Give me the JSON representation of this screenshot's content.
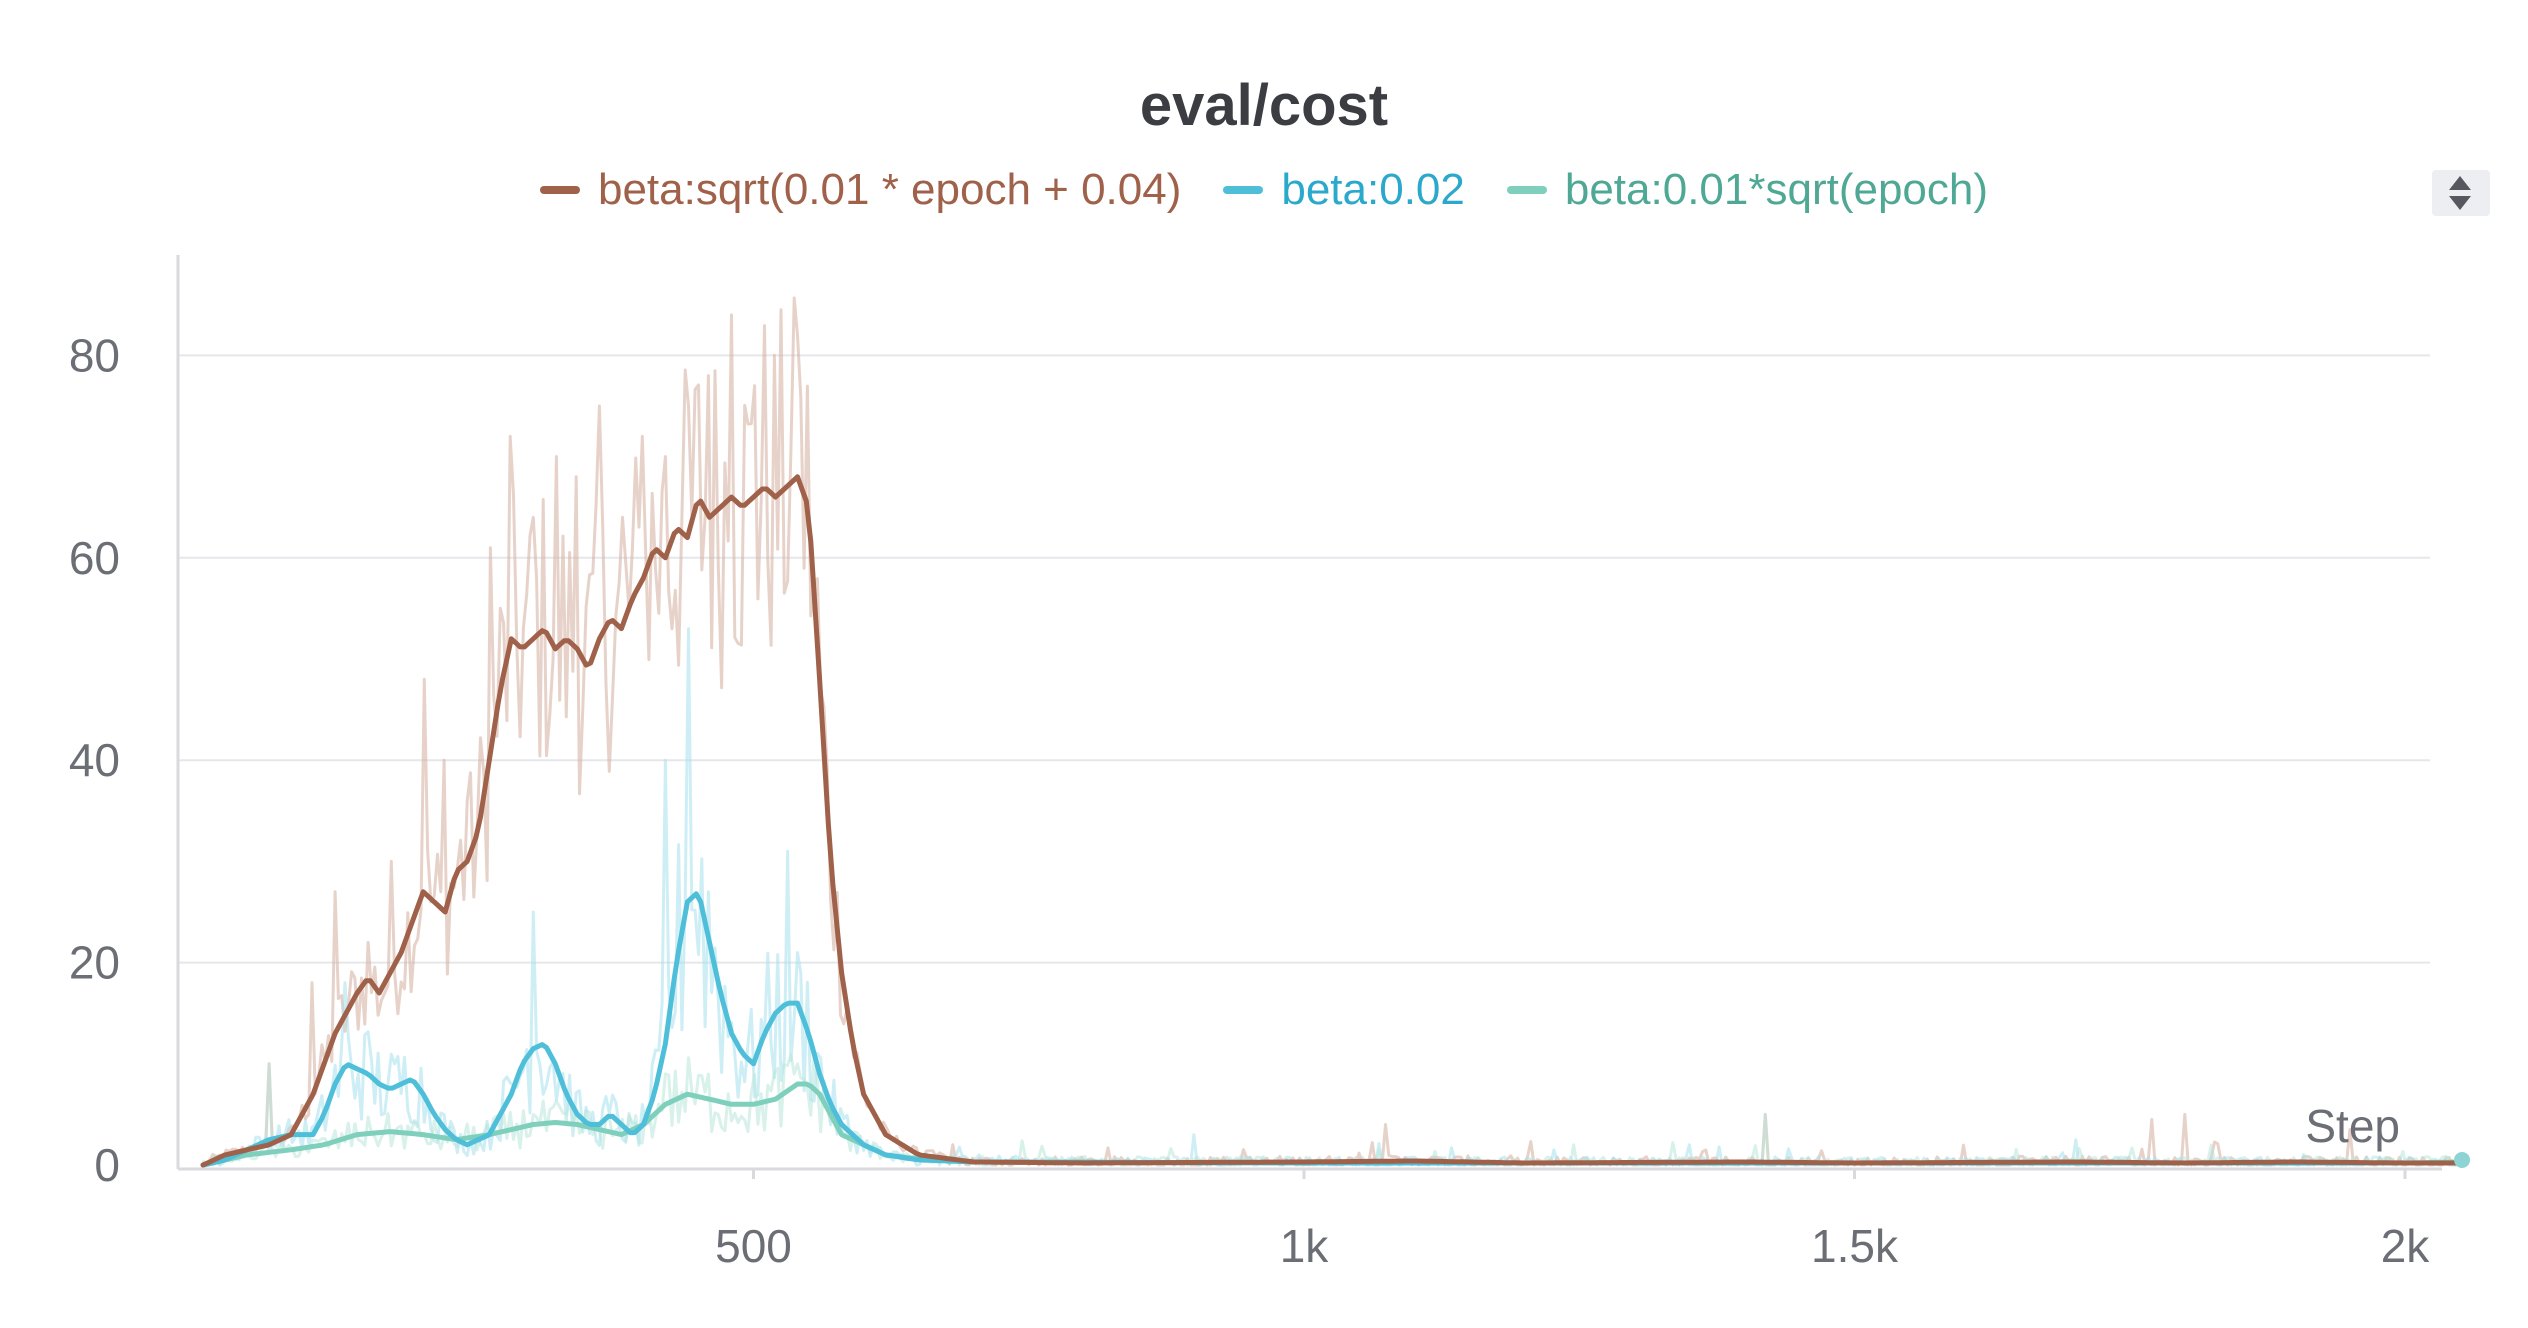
{
  "chart_data": {
    "type": "line",
    "title": "eval/cost",
    "xlabel": "Step",
    "ylabel": "",
    "xlim": [
      0,
      2050
    ],
    "ylim": [
      0,
      90
    ],
    "x_ticks": [
      500,
      1000,
      1500,
      2000
    ],
    "x_tick_labels": [
      "500",
      "1k",
      "1.5k",
      "2k"
    ],
    "y_ticks": [
      0,
      20,
      40,
      60,
      80
    ],
    "y_tick_labels": [
      "0",
      "20",
      "40",
      "60",
      "80"
    ],
    "grid": true,
    "legend_position": "top-center",
    "series": [
      {
        "name": "beta:sqrt(0.01 * epoch + 0.04)",
        "color": "#a0614a",
        "raw_color": "#d4ad9e",
        "smoothed": [
          [
            0,
            0
          ],
          [
            20,
            1
          ],
          [
            40,
            1.5
          ],
          [
            60,
            2
          ],
          [
            80,
            3
          ],
          [
            100,
            7
          ],
          [
            120,
            13
          ],
          [
            140,
            17
          ],
          [
            150,
            18.5
          ],
          [
            160,
            17
          ],
          [
            170,
            19
          ],
          [
            180,
            21
          ],
          [
            190,
            24
          ],
          [
            200,
            27
          ],
          [
            210,
            26
          ],
          [
            220,
            25
          ],
          [
            230,
            29
          ],
          [
            240,
            30
          ],
          [
            250,
            33
          ],
          [
            260,
            40
          ],
          [
            270,
            47
          ],
          [
            280,
            52
          ],
          [
            290,
            51
          ],
          [
            300,
            52
          ],
          [
            310,
            53
          ],
          [
            320,
            51
          ],
          [
            330,
            52
          ],
          [
            340,
            51
          ],
          [
            350,
            49
          ],
          [
            360,
            52
          ],
          [
            370,
            54
          ],
          [
            380,
            53
          ],
          [
            390,
            56
          ],
          [
            400,
            58
          ],
          [
            410,
            61
          ],
          [
            420,
            60
          ],
          [
            430,
            63
          ],
          [
            440,
            62
          ],
          [
            450,
            66
          ],
          [
            460,
            64
          ],
          [
            470,
            65
          ],
          [
            480,
            66
          ],
          [
            490,
            65
          ],
          [
            500,
            66
          ],
          [
            510,
            67
          ],
          [
            520,
            66
          ],
          [
            530,
            67
          ],
          [
            540,
            68
          ],
          [
            550,
            65
          ],
          [
            560,
            48
          ],
          [
            570,
            30
          ],
          [
            580,
            19
          ],
          [
            590,
            12
          ],
          [
            600,
            7
          ],
          [
            620,
            3
          ],
          [
            650,
            1
          ],
          [
            700,
            0.3
          ],
          [
            800,
            0.2
          ],
          [
            1000,
            0.3
          ],
          [
            1100,
            0.4
          ],
          [
            1200,
            0.2
          ],
          [
            1400,
            0.3
          ],
          [
            1500,
            0.2
          ],
          [
            1700,
            0.3
          ],
          [
            1800,
            0.2
          ],
          [
            1900,
            0.3
          ],
          [
            2000,
            0.2
          ],
          [
            2050,
            0.2
          ]
        ],
        "raw_peaks": [
          [
            60,
            10
          ],
          [
            100,
            18
          ],
          [
            120,
            27
          ],
          [
            150,
            22
          ],
          [
            170,
            30
          ],
          [
            200,
            48
          ],
          [
            220,
            40
          ],
          [
            240,
            36
          ],
          [
            260,
            61
          ],
          [
            280,
            72
          ],
          [
            300,
            64
          ],
          [
            320,
            70
          ],
          [
            340,
            68
          ],
          [
            360,
            75
          ],
          [
            380,
            64
          ],
          [
            400,
            72
          ],
          [
            420,
            70
          ],
          [
            440,
            75
          ],
          [
            460,
            78
          ],
          [
            480,
            84
          ],
          [
            500,
            77
          ],
          [
            520,
            80
          ],
          [
            540,
            82
          ],
          [
            1075,
            4
          ],
          [
            1420,
            5
          ],
          [
            1770,
            4.5
          ],
          [
            1800,
            5
          ],
          [
            1950,
            3.5
          ]
        ]
      },
      {
        "name": "beta:0.02",
        "color": "#4fbfd9",
        "raw_color": "#a6e0ee",
        "smoothed": [
          [
            0,
            0
          ],
          [
            20,
            0.5
          ],
          [
            40,
            1.5
          ],
          [
            60,
            2.5
          ],
          [
            80,
            3
          ],
          [
            100,
            3
          ],
          [
            110,
            5
          ],
          [
            120,
            8
          ],
          [
            130,
            10
          ],
          [
            140,
            9.5
          ],
          [
            150,
            9
          ],
          [
            160,
            8
          ],
          [
            170,
            7.5
          ],
          [
            180,
            8
          ],
          [
            190,
            8.5
          ],
          [
            200,
            7
          ],
          [
            210,
            5
          ],
          [
            220,
            3.5
          ],
          [
            230,
            2.5
          ],
          [
            240,
            2
          ],
          [
            250,
            2.5
          ],
          [
            260,
            3
          ],
          [
            270,
            5
          ],
          [
            280,
            7
          ],
          [
            290,
            10
          ],
          [
            300,
            11.5
          ],
          [
            310,
            12
          ],
          [
            320,
            10
          ],
          [
            330,
            7
          ],
          [
            340,
            5
          ],
          [
            350,
            4
          ],
          [
            360,
            4
          ],
          [
            370,
            5
          ],
          [
            380,
            4
          ],
          [
            390,
            3
          ],
          [
            400,
            4
          ],
          [
            410,
            7
          ],
          [
            420,
            12
          ],
          [
            430,
            20
          ],
          [
            440,
            26
          ],
          [
            450,
            27
          ],
          [
            460,
            22
          ],
          [
            470,
            17
          ],
          [
            480,
            13
          ],
          [
            490,
            11
          ],
          [
            500,
            10
          ],
          [
            510,
            13
          ],
          [
            520,
            15
          ],
          [
            530,
            16
          ],
          [
            540,
            16
          ],
          [
            550,
            13
          ],
          [
            560,
            9
          ],
          [
            570,
            6
          ],
          [
            580,
            4
          ],
          [
            600,
            2
          ],
          [
            620,
            1
          ],
          [
            650,
            0.5
          ],
          [
            700,
            0.3
          ],
          [
            1000,
            0.2
          ],
          [
            1500,
            0.2
          ],
          [
            2000,
            0.2
          ],
          [
            2050,
            0.2
          ]
        ],
        "raw_peaks": [
          [
            130,
            18
          ],
          [
            300,
            25
          ],
          [
            420,
            40
          ],
          [
            440,
            53
          ],
          [
            460,
            27
          ],
          [
            530,
            31
          ],
          [
            540,
            21
          ],
          [
            900,
            3
          ],
          [
            1350,
            2
          ],
          [
            1700,
            2.5
          ]
        ]
      },
      {
        "name": "beta:0.01*sqrt(epoch)",
        "color": "#7fcfbd",
        "raw_color": "#b9e5da",
        "smoothed": [
          [
            0,
            0
          ],
          [
            40,
            1
          ],
          [
            80,
            1.5
          ],
          [
            110,
            2
          ],
          [
            140,
            3
          ],
          [
            170,
            3.3
          ],
          [
            200,
            3
          ],
          [
            230,
            2.5
          ],
          [
            260,
            3
          ],
          [
            280,
            3.5
          ],
          [
            300,
            4
          ],
          [
            320,
            4.2
          ],
          [
            340,
            4
          ],
          [
            360,
            3.5
          ],
          [
            380,
            3
          ],
          [
            400,
            4
          ],
          [
            420,
            6
          ],
          [
            440,
            7
          ],
          [
            460,
            6.5
          ],
          [
            480,
            6
          ],
          [
            500,
            6
          ],
          [
            520,
            6.5
          ],
          [
            540,
            8
          ],
          [
            550,
            8
          ],
          [
            560,
            7
          ],
          [
            570,
            5
          ],
          [
            580,
            3
          ],
          [
            600,
            2
          ],
          [
            620,
            1
          ],
          [
            650,
            0.6
          ],
          [
            700,
            0.3
          ],
          [
            1000,
            0.2
          ],
          [
            1500,
            0.2
          ],
          [
            2000,
            0.2
          ],
          [
            2050,
            0.3
          ]
        ],
        "raw_peaks": [
          [
            60,
            10
          ],
          [
            300,
            5
          ],
          [
            420,
            9
          ],
          [
            540,
            10
          ],
          [
            1420,
            5
          ]
        ]
      }
    ]
  }
}
